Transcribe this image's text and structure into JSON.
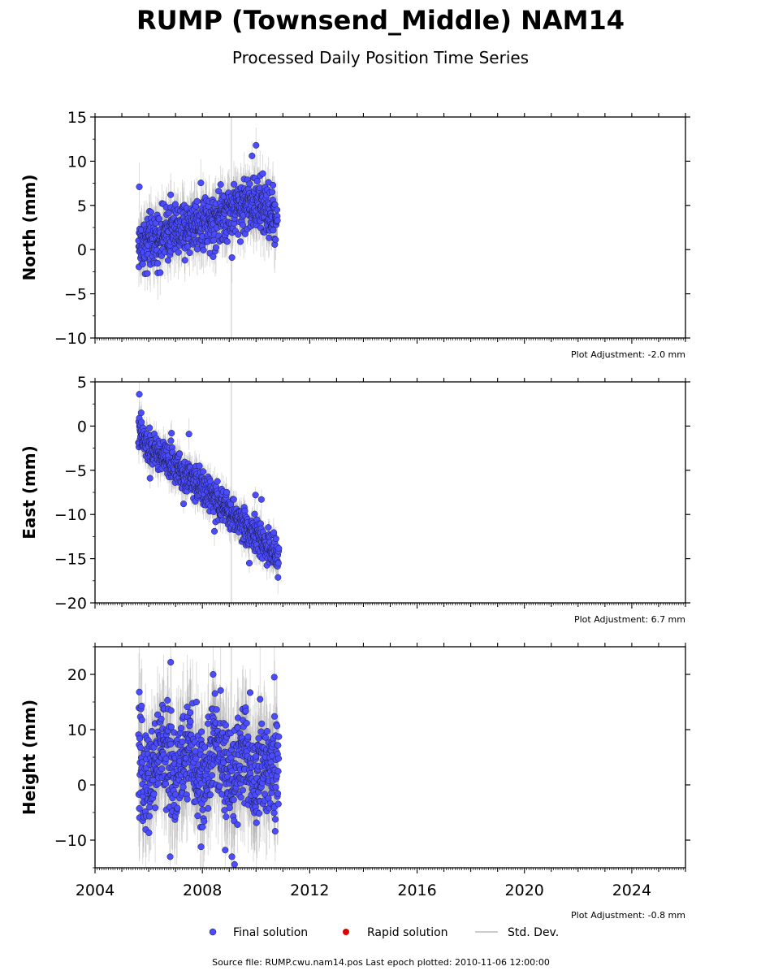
{
  "title": "RUMP (Townsend_Middle) NAM14",
  "subtitle": "Processed Daily Position Time Series",
  "legend": {
    "final": "Final solution",
    "rapid": "Rapid solution",
    "std": "Std. Dev."
  },
  "source_text": "Source file: RUMP.cwu.nam14.pos  Last epoch plotted: 2010-11-06 12:00:00",
  "colors": {
    "final": "#4b4bff",
    "rapid": "#dd0000",
    "std": "#9a9a9a"
  },
  "chart_data": [
    {
      "type": "scatter",
      "ylabel": "North (mm)",
      "ylim": [
        -10,
        15
      ],
      "yticks": [
        -10,
        -5,
        0,
        5,
        10,
        15
      ],
      "ytick_labels": [
        "−10",
        "−5",
        "0",
        "5",
        "10",
        "15"
      ],
      "xlim": [
        2004,
        2026
      ],
      "adjustment": "Plot Adjustment: -2.0 mm",
      "series": [
        {
          "name": "Final solution",
          "x": [
            2005.62,
            2005.9,
            2006.3,
            2006.8,
            2007.3,
            2007.8,
            2008.3,
            2008.8,
            2009.3,
            2009.8,
            2010.3,
            2010.8
          ],
          "values": [
            0.5,
            0.8,
            1.3,
            1.9,
            2.3,
            3.0,
            3.6,
            4.2,
            4.7,
            5.4,
            4.6,
            3.6
          ]
        }
      ],
      "outliers": [
        [
          2005.65,
          7.1
        ],
        [
          2006.82,
          6.2
        ],
        [
          2009.85,
          10.6
        ],
        [
          2010.0,
          11.8
        ],
        [
          2010.25,
          8.6
        ],
        [
          2007.35,
          -1.2
        ],
        [
          2005.95,
          -2.7
        ],
        [
          2009.1,
          -0.9
        ],
        [
          2008.4,
          -0.8
        ]
      ],
      "spread": 4.0,
      "sigma_spike": 2009.08
    },
    {
      "type": "scatter",
      "ylabel": "East (mm)",
      "ylim": [
        -20,
        5
      ],
      "yticks": [
        -20,
        -15,
        -10,
        -5,
        0,
        5
      ],
      "ytick_labels": [
        "−20",
        "−15",
        "−10",
        "−5",
        "0",
        "5"
      ],
      "xlim": [
        2004,
        2026
      ],
      "adjustment": "Plot Adjustment: 6.7 mm",
      "series": [
        {
          "name": "Final solution",
          "x": [
            2005.62,
            2006.0,
            2006.5,
            2007.0,
            2007.5,
            2008.0,
            2008.5,
            2009.0,
            2009.5,
            2010.0,
            2010.5,
            2010.85
          ],
          "values": [
            -0.8,
            -2.5,
            -3.5,
            -4.6,
            -5.8,
            -7.0,
            -8.4,
            -9.8,
            -11.0,
            -12.4,
            -13.8,
            -15.0
          ]
        }
      ],
      "outliers": [
        [
          2005.65,
          3.6
        ],
        [
          2005.72,
          1.5
        ],
        [
          2009.98,
          -7.8
        ],
        [
          2010.2,
          -8.3
        ],
        [
          2007.3,
          -8.8
        ],
        [
          2008.45,
          -11.9
        ],
        [
          2009.75,
          -15.5
        ],
        [
          2006.05,
          -5.9
        ],
        [
          2006.85,
          -0.8
        ],
        [
          2007.5,
          -0.9
        ]
      ],
      "spread": 2.5,
      "sigma_spike": 2009.08
    },
    {
      "type": "scatter",
      "ylabel": "Height (mm)",
      "ylim": [
        -15,
        25
      ],
      "yticks": [
        -10,
        0,
        10,
        20
      ],
      "ytick_labels": [
        "−10",
        "0",
        "10",
        "20"
      ],
      "xlim": [
        2004,
        2026
      ],
      "xticks": [
        2004,
        2008,
        2012,
        2016,
        2020,
        2024
      ],
      "xtick_labels": [
        "2004",
        "2008",
        "2012",
        "2016",
        "2020",
        "2024"
      ],
      "adjustment": "Plot Adjustment: -0.8 mm",
      "series": [
        {
          "name": "Final solution",
          "x": [
            2005.62,
            2006.0,
            2006.5,
            2007.0,
            2007.5,
            2008.0,
            2008.5,
            2009.0,
            2009.5,
            2010.0,
            2010.5,
            2010.85
          ],
          "values": [
            3.0,
            1.0,
            7.0,
            2.0,
            6.0,
            0.0,
            8.0,
            1.0,
            6.0,
            0.0,
            5.0,
            2.0
          ]
        }
      ],
      "outliers": [
        [
          2005.65,
          16.8
        ],
        [
          2006.82,
          22.2
        ],
        [
          2008.4,
          20.0
        ],
        [
          2010.68,
          19.5
        ],
        [
          2009.1,
          -13.0
        ],
        [
          2009.2,
          -14.4
        ],
        [
          2006.8,
          -13.0
        ],
        [
          2007.95,
          -11.2
        ],
        [
          2008.85,
          -11.8
        ],
        [
          2009.78,
          16.7
        ],
        [
          2010.15,
          15.5
        ],
        [
          2007.78,
          15.0
        ]
      ],
      "spread": 12.0,
      "sigma_spike": 2009.08
    }
  ]
}
